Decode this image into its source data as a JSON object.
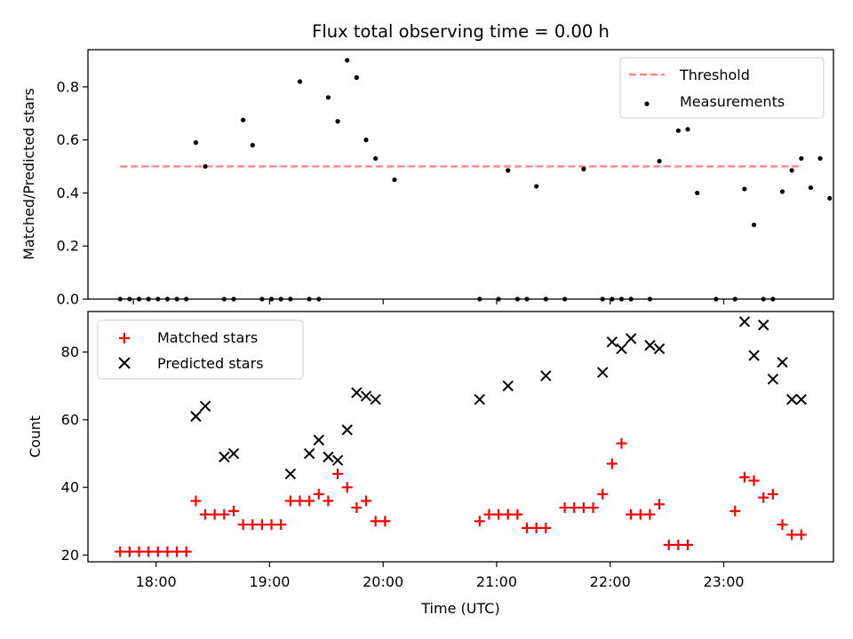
{
  "chart_data": [
    {
      "type": "scatter",
      "title": "Flux total observing time = 0.00 h",
      "xlabel": "",
      "ylabel": "Matched/Predicted stars",
      "xlim": [
        "17:24",
        "23:58"
      ],
      "ylim": [
        0,
        0.94
      ],
      "yticks": [
        0.0,
        0.2,
        0.4,
        0.6,
        0.8
      ],
      "ytick_labels": [
        "0.0",
        "0.2",
        "0.4",
        "0.6",
        "0.8"
      ],
      "xticks": [
        "17:48",
        "19:00",
        "20:00",
        "21:00",
        "22:00",
        "23:00"
      ],
      "grid": false,
      "legend": {
        "position": "top-right",
        "entries": [
          "Threshold",
          "Measurements"
        ]
      },
      "threshold": {
        "name": "Threshold",
        "value": 0.5,
        "x_range": [
          "17:41",
          "23:40"
        ],
        "color": "#ff7f7f"
      },
      "series": [
        {
          "name": "Measurements",
          "color": "#000000",
          "marker": "dot",
          "x": [
            "17:41",
            "17:46",
            "17:51",
            "17:56",
            "18:01",
            "18:06",
            "18:11",
            "18:16",
            "18:21",
            "18:26",
            "18:36",
            "18:41",
            "18:46",
            "18:51",
            "18:56",
            "19:01",
            "19:06",
            "19:11",
            "19:16",
            "19:21",
            "19:26",
            "19:31",
            "19:36",
            "19:41",
            "19:46",
            "19:51",
            "19:56",
            "20:06",
            "20:51",
            "21:01",
            "21:06",
            "21:11",
            "21:16",
            "21:21",
            "21:26",
            "21:36",
            "21:46",
            "21:56",
            "22:01",
            "22:06",
            "22:11",
            "22:21",
            "22:26",
            "22:36",
            "22:41",
            "22:46",
            "22:56",
            "23:06",
            "23:11",
            "23:16",
            "23:21",
            "23:26",
            "23:31",
            "23:36",
            "23:41",
            "23:46",
            "23:51",
            "23:56"
          ],
          "y": [
            0,
            0,
            0,
            0,
            0,
            0,
            0,
            0,
            0.59,
            0.5,
            0,
            0,
            0.675,
            0.58,
            0,
            0,
            0,
            0,
            0.82,
            0,
            0,
            0.76,
            0.67,
            0.9,
            0.835,
            0.6,
            0.53,
            0.45,
            0,
            0,
            0.485,
            0,
            0,
            0.425,
            0,
            0,
            0.49,
            0,
            0,
            0,
            0,
            0,
            0.52,
            0.635,
            0.64,
            0.4,
            0,
            0,
            0.415,
            0.28,
            0,
            0,
            0.405,
            0.485,
            0.53,
            0.42,
            0.53,
            0.38
          ]
        }
      ]
    },
    {
      "type": "scatter",
      "title": "",
      "xlabel": "Time (UTC)",
      "ylabel": "Count",
      "xlim": [
        "17:24",
        "23:58"
      ],
      "ylim": [
        18,
        92
      ],
      "yticks": [
        20,
        40,
        60,
        80
      ],
      "ytick_labels": [
        "20",
        "40",
        "60",
        "80"
      ],
      "xticks": [
        "18:00",
        "19:00",
        "20:00",
        "21:00",
        "22:00",
        "23:00"
      ],
      "xtick_labels": [
        "18:00",
        "19:00",
        "20:00",
        "21:00",
        "22:00",
        "23:00"
      ],
      "grid": false,
      "legend": {
        "position": "top-left",
        "entries": [
          "Matched stars",
          "Predicted stars"
        ]
      },
      "series": [
        {
          "name": "Matched stars",
          "color": "#ff0000",
          "marker": "plus",
          "x": [
            "17:41",
            "17:46",
            "17:51",
            "17:56",
            "18:01",
            "18:06",
            "18:11",
            "18:16",
            "18:21",
            "18:26",
            "18:31",
            "18:36",
            "18:41",
            "18:46",
            "18:51",
            "18:56",
            "19:01",
            "19:06",
            "19:11",
            "19:16",
            "19:21",
            "19:26",
            "19:31",
            "19:36",
            "19:41",
            "19:46",
            "19:51",
            "19:56",
            "20:01",
            "20:51",
            "20:56",
            "21:01",
            "21:06",
            "21:11",
            "21:16",
            "21:21",
            "21:26",
            "21:36",
            "21:41",
            "21:46",
            "21:51",
            "21:56",
            "22:01",
            "22:06",
            "22:11",
            "22:16",
            "22:21",
            "22:26",
            "22:31",
            "22:36",
            "22:41",
            "23:06",
            "23:11",
            "23:16",
            "23:21",
            "23:26",
            "23:31",
            "23:36",
            "23:41"
          ],
          "y": [
            21,
            21,
            21,
            21,
            21,
            21,
            21,
            21,
            36,
            32,
            32,
            32,
            33,
            29,
            29,
            29,
            29,
            29,
            36,
            36,
            36,
            38,
            36,
            44,
            40,
            34,
            36,
            30,
            30,
            30,
            32,
            32,
            32,
            32,
            28,
            28,
            28,
            34,
            34,
            34,
            34,
            38,
            47,
            53,
            32,
            32,
            32,
            35,
            23,
            23,
            23,
            33,
            43,
            42,
            37,
            38,
            29,
            26,
            26
          ]
        },
        {
          "name": "Predicted stars",
          "color": "#000000",
          "marker": "x",
          "x": [
            "18:21",
            "18:26",
            "18:36",
            "18:41",
            "19:11",
            "19:21",
            "19:26",
            "19:31",
            "19:36",
            "19:41",
            "19:46",
            "19:51",
            "19:56",
            "20:51",
            "21:06",
            "21:26",
            "21:56",
            "22:01",
            "22:06",
            "22:11",
            "22:21",
            "22:26",
            "23:11",
            "23:16",
            "23:21",
            "23:26",
            "23:31",
            "23:36",
            "23:41"
          ],
          "y": [
            61,
            64,
            49,
            50,
            44,
            50,
            54,
            49,
            48,
            57,
            68,
            67,
            66,
            66,
            70,
            73,
            74,
            83,
            81,
            84,
            82,
            81,
            89,
            79,
            88,
            72,
            77,
            66,
            66
          ]
        }
      ]
    }
  ]
}
